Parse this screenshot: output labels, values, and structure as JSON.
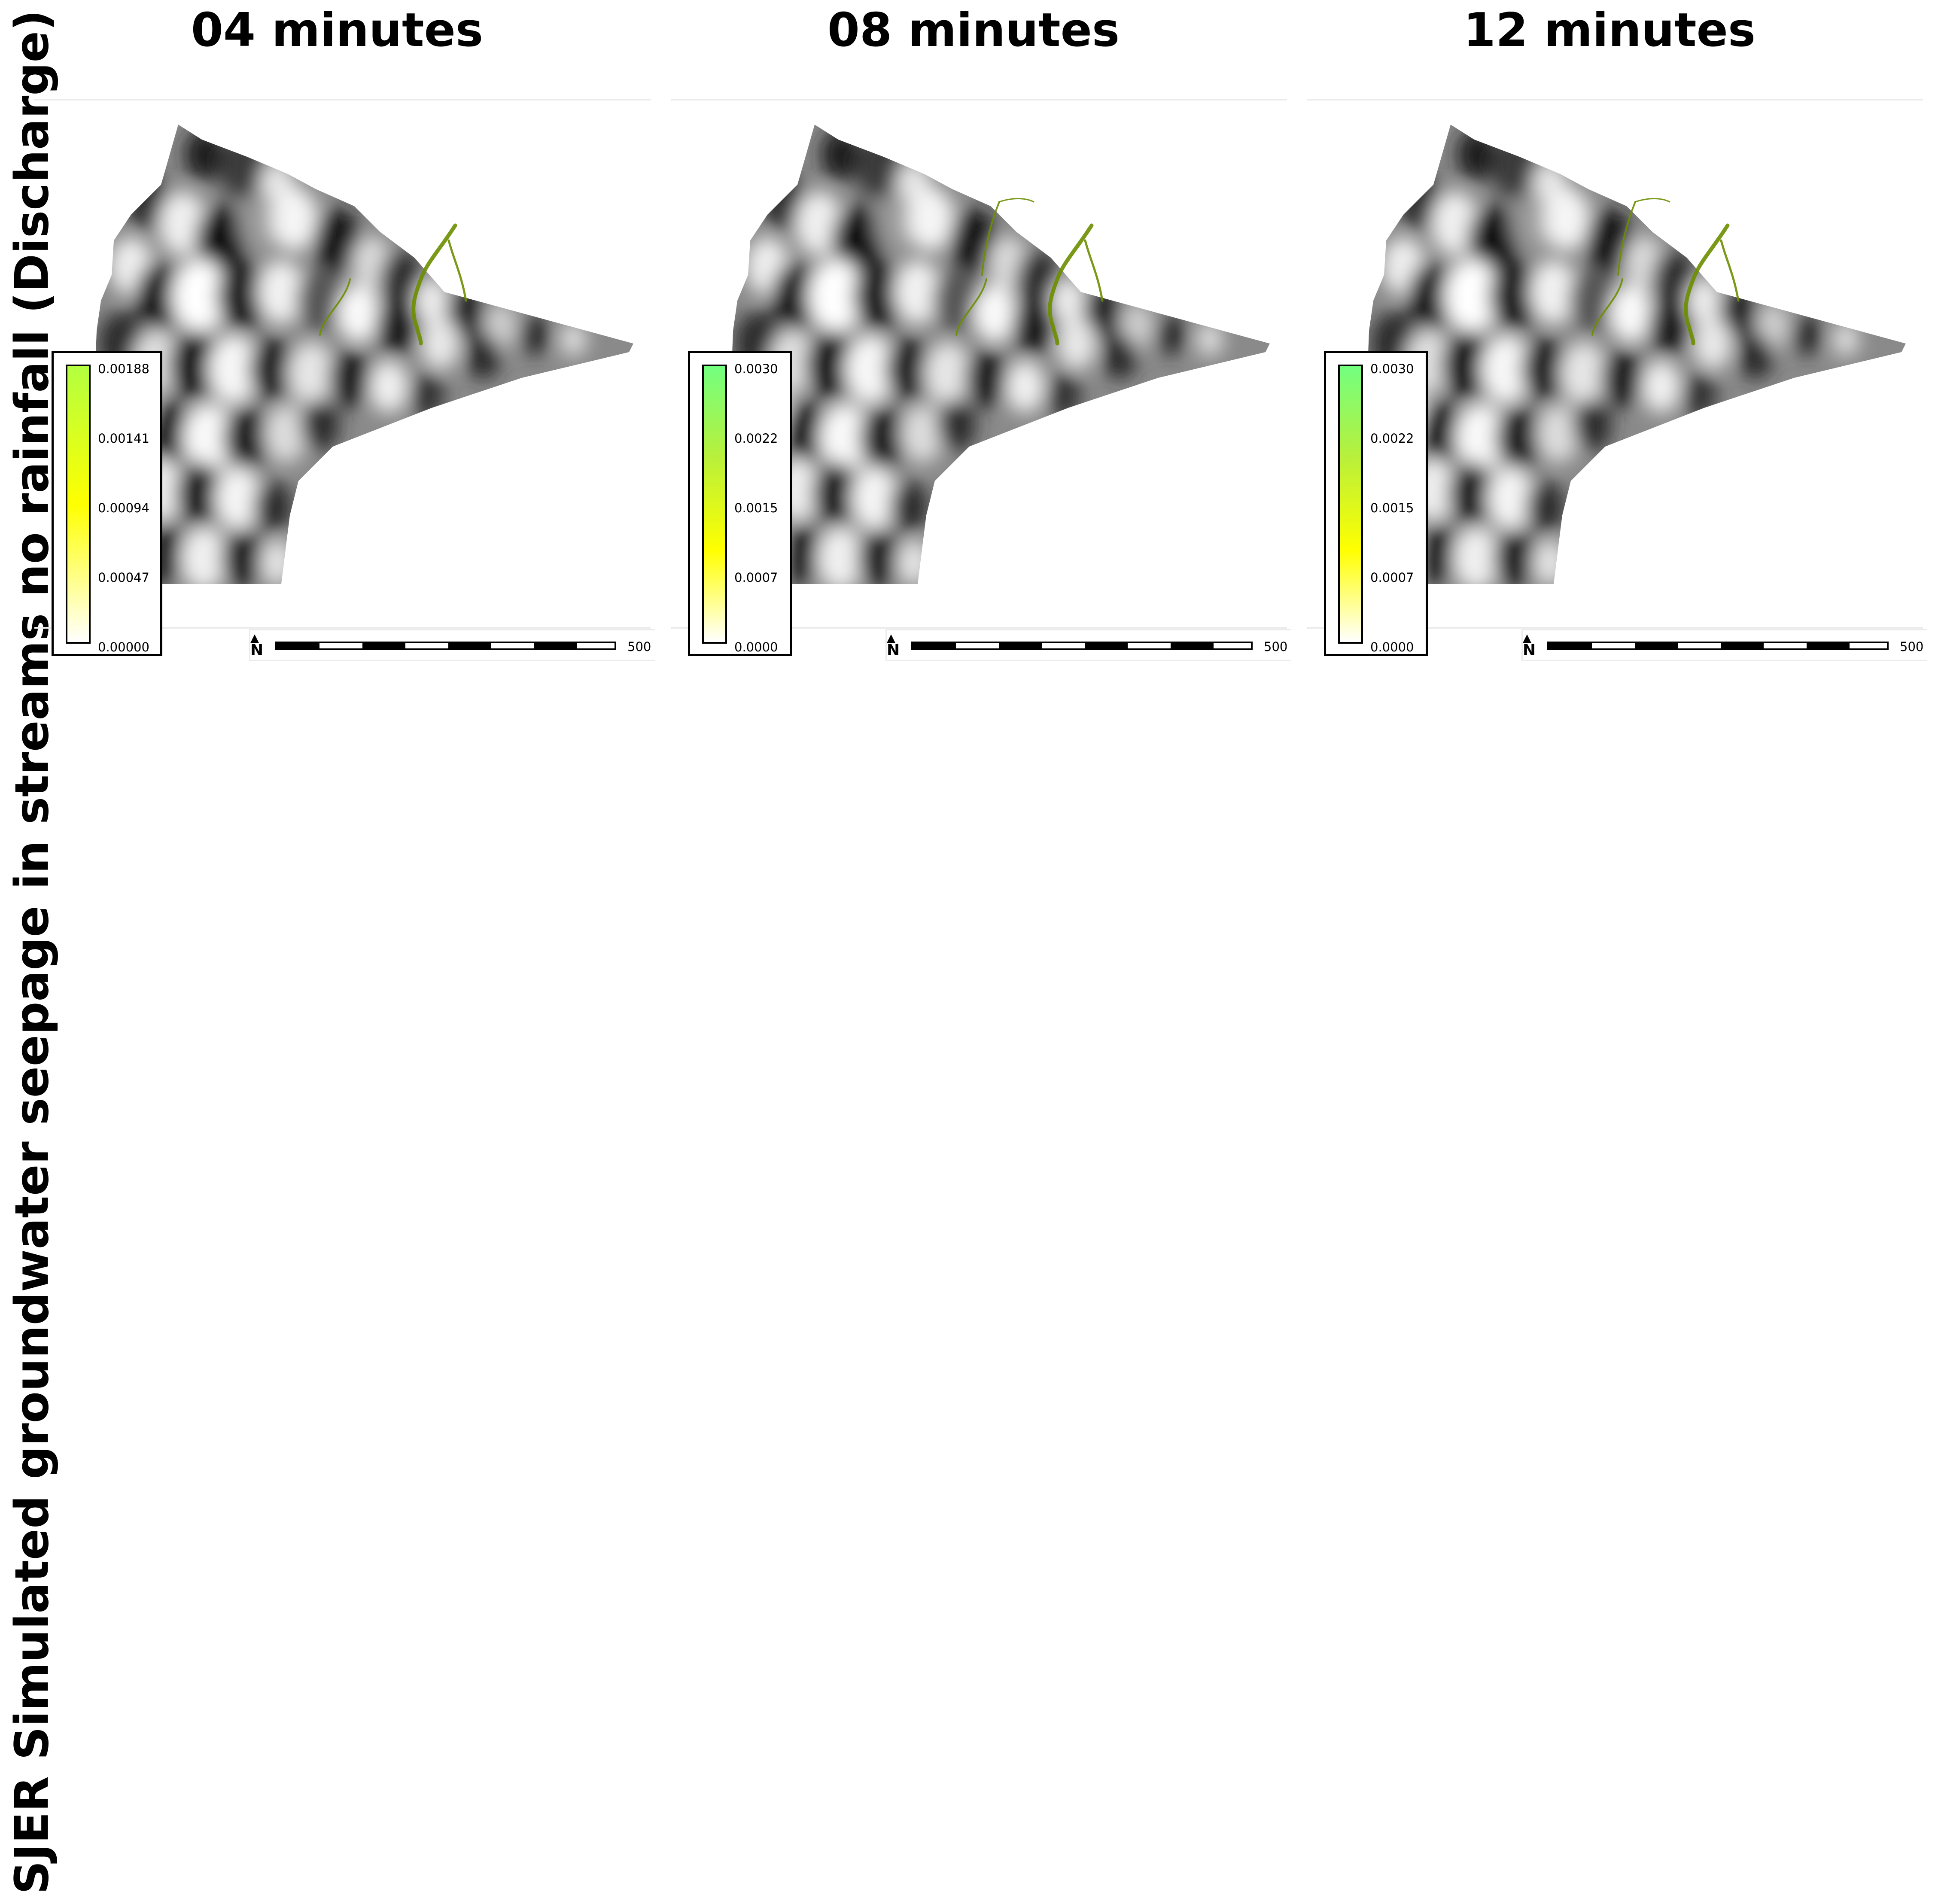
{
  "figure": {
    "side_title": "SJER Simulated groundwater seepage in streams no rainfall (Discharge)"
  },
  "panels": [
    {
      "title": "04 minutes",
      "legend": {
        "ticks": [
          "0.00188",
          "0.00141",
          "0.00094",
          "0.00047",
          "0.00000"
        ],
        "gradient": [
          "#b3ff40",
          "#ffff00",
          "#ffffff"
        ]
      },
      "scale_label": "500",
      "north_symbol": "N"
    },
    {
      "title": "08 minutes",
      "legend": {
        "ticks": [
          "0.0030",
          "0.0022",
          "0.0015",
          "0.0007",
          "0.0000"
        ],
        "gradient": [
          "#73ff80",
          "#b9f03a",
          "#ffff00",
          "#ffffff"
        ]
      },
      "scale_label": "500",
      "north_symbol": "N"
    },
    {
      "title": "12 minutes",
      "legend": {
        "ticks": [
          "0.0030",
          "0.0022",
          "0.0015",
          "0.0007",
          "0.0000"
        ],
        "gradient": [
          "#73ff80",
          "#b9f03a",
          "#ffff00",
          "#ffffff"
        ]
      },
      "scale_label": "500",
      "north_symbol": "N"
    }
  ],
  "colors": {
    "stream": "#6b8e00",
    "panel_rule": "#ebebeb"
  }
}
